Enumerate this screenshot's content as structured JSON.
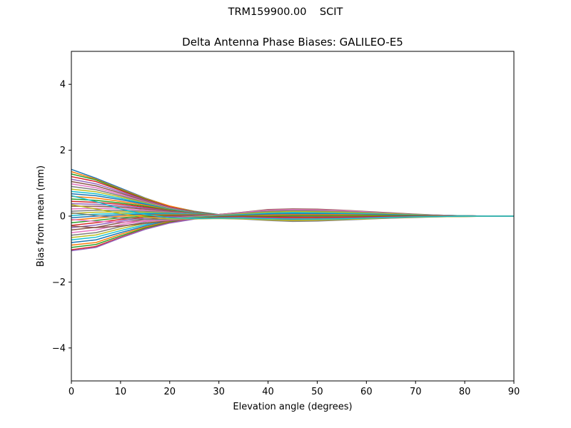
{
  "figure": {
    "suptitle": "TRM159900.00    SCIT"
  },
  "chart_data": {
    "type": "line",
    "title": "Delta Antenna Phase Biases: GALILEO-E5",
    "xlabel": "Elevation angle (degrees)",
    "ylabel": "Bias from mean (mm)",
    "xlim": [
      0,
      90
    ],
    "ylim": [
      -5,
      5
    ],
    "xticks": [
      0,
      10,
      20,
      30,
      40,
      50,
      60,
      70,
      80,
      90
    ],
    "yticks": [
      -4,
      -2,
      0,
      2,
      4
    ],
    "ytick_labels": [
      "−4",
      "−2",
      "0",
      "2",
      "4"
    ],
    "grid": false,
    "legend": "none",
    "x": [
      0,
      5,
      10,
      15,
      20,
      25,
      30,
      35,
      40,
      45,
      50,
      55,
      60,
      65,
      70,
      75,
      80,
      85,
      90
    ],
    "palette": [
      "#1f77b4",
      "#ff7f0e",
      "#2ca02c",
      "#d62728",
      "#9467bd",
      "#8c564b",
      "#e377c2",
      "#7f7f7f",
      "#bcbd22",
      "#17becf"
    ],
    "series": [
      {
        "values": [
          1.42,
          1.15,
          0.85,
          0.55,
          0.3,
          0.15,
          0.05,
          0.02,
          0.0,
          -0.02,
          -0.03,
          -0.03,
          -0.02,
          -0.01,
          -0.01,
          0.0,
          0.0,
          0.0,
          0.0
        ]
      },
      {
        "values": [
          1.35,
          1.12,
          0.82,
          0.54,
          0.31,
          0.14,
          0.04,
          0.01,
          -0.01,
          -0.03,
          -0.04,
          -0.03,
          -0.02,
          -0.02,
          -0.01,
          0.0,
          0.0,
          0.0,
          0.0
        ]
      },
      {
        "values": [
          1.28,
          1.1,
          0.8,
          0.52,
          0.28,
          0.13,
          0.04,
          0.01,
          -0.02,
          -0.04,
          -0.05,
          -0.04,
          -0.03,
          -0.02,
          -0.01,
          -0.01,
          0.0,
          0.0,
          0.0
        ]
      },
      {
        "values": [
          1.2,
          1.05,
          0.78,
          0.5,
          0.28,
          0.12,
          0.03,
          0.0,
          -0.03,
          -0.05,
          -0.06,
          -0.05,
          -0.04,
          -0.02,
          -0.01,
          -0.01,
          0.0,
          0.0,
          0.0
        ]
      },
      {
        "values": [
          1.12,
          0.98,
          0.74,
          0.48,
          0.26,
          0.12,
          0.03,
          0.01,
          -0.02,
          -0.04,
          -0.05,
          -0.05,
          -0.03,
          -0.02,
          -0.01,
          0.0,
          0.0,
          0.0,
          0.0
        ]
      },
      {
        "values": [
          1.05,
          0.92,
          0.7,
          0.46,
          0.25,
          0.11,
          0.03,
          0.0,
          -0.03,
          -0.05,
          -0.06,
          -0.05,
          -0.04,
          -0.02,
          -0.01,
          -0.01,
          0.0,
          0.0,
          0.0
        ]
      },
      {
        "values": [
          0.98,
          0.86,
          0.66,
          0.44,
          0.24,
          0.1,
          0.02,
          0.0,
          -0.03,
          -0.05,
          -0.06,
          -0.05,
          -0.04,
          -0.03,
          -0.01,
          -0.01,
          0.0,
          0.0,
          0.0
        ]
      },
      {
        "values": [
          0.9,
          0.8,
          0.62,
          0.42,
          0.23,
          0.1,
          0.02,
          0.0,
          -0.02,
          -0.04,
          -0.05,
          -0.05,
          -0.04,
          -0.02,
          -0.01,
          0.0,
          0.0,
          0.0,
          0.0
        ]
      },
      {
        "values": [
          0.82,
          0.74,
          0.58,
          0.4,
          0.22,
          0.09,
          0.02,
          0.0,
          -0.02,
          -0.04,
          -0.05,
          -0.04,
          -0.03,
          -0.02,
          -0.01,
          0.0,
          0.0,
          0.0,
          0.0
        ]
      },
      {
        "values": [
          0.75,
          0.68,
          0.54,
          0.38,
          0.21,
          0.09,
          0.02,
          0.0,
          -0.02,
          -0.03,
          -0.04,
          -0.04,
          -0.03,
          -0.02,
          -0.01,
          0.0,
          0.0,
          0.0,
          0.0
        ]
      },
      {
        "values": [
          0.68,
          0.62,
          0.5,
          0.36,
          0.2,
          0.08,
          0.02,
          0.01,
          -0.01,
          -0.03,
          -0.04,
          -0.03,
          -0.03,
          -0.02,
          -0.01,
          0.0,
          0.0,
          0.0,
          0.0
        ]
      },
      {
        "values": [
          0.6,
          0.55,
          0.45,
          0.33,
          0.19,
          0.08,
          0.02,
          0.01,
          -0.01,
          -0.02,
          -0.03,
          -0.03,
          -0.02,
          -0.01,
          -0.01,
          0.0,
          0.0,
          0.0,
          0.0
        ]
      },
      {
        "values": [
          0.52,
          0.48,
          0.4,
          0.3,
          0.18,
          0.08,
          0.02,
          0.01,
          0.0,
          -0.02,
          -0.03,
          -0.03,
          -0.02,
          -0.01,
          0.0,
          0.0,
          0.0,
          0.0,
          0.0
        ]
      },
      {
        "values": [
          0.45,
          0.42,
          0.36,
          0.27,
          0.16,
          0.07,
          0.02,
          0.01,
          0.0,
          -0.01,
          -0.02,
          -0.02,
          -0.02,
          -0.01,
          0.0,
          0.0,
          0.0,
          0.0,
          0.0
        ]
      },
      {
        "values": [
          0.38,
          0.36,
          0.31,
          0.24,
          0.15,
          0.07,
          0.02,
          0.01,
          0.01,
          0.0,
          -0.01,
          -0.02,
          -0.01,
          -0.01,
          0.0,
          0.0,
          0.0,
          0.0,
          0.0
        ]
      },
      {
        "values": [
          0.3,
          0.3,
          0.27,
          0.21,
          0.14,
          0.06,
          0.02,
          0.02,
          0.02,
          0.01,
          0.0,
          -0.01,
          -0.01,
          0.0,
          0.0,
          0.0,
          0.0,
          0.0,
          0.0
        ]
      },
      {
        "values": [
          0.22,
          0.24,
          0.22,
          0.18,
          0.12,
          0.06,
          0.02,
          0.03,
          0.03,
          0.02,
          0.01,
          0.0,
          0.0,
          0.0,
          0.0,
          0.0,
          0.0,
          0.0,
          0.0
        ]
      },
      {
        "values": [
          0.15,
          0.18,
          0.17,
          0.15,
          0.11,
          0.06,
          0.03,
          0.04,
          0.05,
          0.04,
          0.03,
          0.02,
          0.01,
          0.01,
          0.0,
          0.0,
          0.0,
          0.0,
          0.0
        ]
      },
      {
        "values": [
          0.08,
          0.12,
          0.13,
          0.12,
          0.09,
          0.06,
          0.04,
          0.05,
          0.07,
          0.07,
          0.06,
          0.04,
          0.03,
          0.02,
          0.01,
          0.01,
          0.0,
          0.0,
          0.0
        ]
      },
      {
        "values": [
          0.02,
          0.06,
          0.08,
          0.09,
          0.08,
          0.06,
          0.05,
          0.07,
          0.09,
          0.1,
          0.09,
          0.07,
          0.05,
          0.03,
          0.02,
          0.01,
          0.0,
          0.0,
          0.0
        ]
      },
      {
        "values": [
          -0.05,
          0.0,
          0.04,
          0.06,
          0.06,
          0.05,
          0.05,
          0.08,
          0.11,
          0.12,
          0.11,
          0.09,
          0.07,
          0.05,
          0.03,
          0.01,
          0.0,
          0.0,
          0.0
        ]
      },
      {
        "values": [
          -0.12,
          -0.06,
          0.0,
          0.03,
          0.04,
          0.04,
          0.05,
          0.09,
          0.13,
          0.14,
          0.13,
          0.11,
          0.08,
          0.06,
          0.03,
          0.02,
          0.01,
          0.0,
          0.0
        ]
      },
      {
        "values": [
          -0.2,
          -0.13,
          -0.05,
          0.0,
          0.02,
          0.03,
          0.05,
          0.1,
          0.15,
          0.16,
          0.15,
          0.13,
          0.1,
          0.07,
          0.04,
          0.02,
          0.01,
          0.0,
          0.0
        ]
      },
      {
        "values": [
          -0.28,
          -0.2,
          -0.1,
          -0.03,
          0.0,
          0.02,
          0.05,
          0.11,
          0.17,
          0.19,
          0.18,
          0.15,
          0.11,
          0.08,
          0.05,
          0.02,
          0.01,
          0.0,
          0.0
        ]
      },
      {
        "values": [
          -0.35,
          -0.27,
          -0.15,
          -0.06,
          -0.02,
          0.01,
          0.05,
          0.12,
          0.19,
          0.21,
          0.2,
          0.17,
          0.13,
          0.09,
          0.05,
          0.03,
          0.01,
          0.0,
          0.0
        ]
      },
      {
        "values": [
          -0.42,
          -0.34,
          -0.2,
          -0.1,
          -0.04,
          0.0,
          0.05,
          0.12,
          0.2,
          0.22,
          0.21,
          0.18,
          0.14,
          0.1,
          0.06,
          0.03,
          0.01,
          0.0,
          0.0
        ]
      },
      {
        "values": [
          -0.5,
          -0.42,
          -0.26,
          -0.14,
          -0.06,
          -0.01,
          0.04,
          0.11,
          0.18,
          0.2,
          0.19,
          0.17,
          0.13,
          0.09,
          0.05,
          0.03,
          0.01,
          0.0,
          0.0
        ]
      },
      {
        "values": [
          -0.58,
          -0.5,
          -0.32,
          -0.18,
          -0.08,
          -0.02,
          0.03,
          0.09,
          0.15,
          0.17,
          0.16,
          0.14,
          0.11,
          0.08,
          0.05,
          0.02,
          0.01,
          0.0,
          0.0
        ]
      },
      {
        "values": [
          -0.65,
          -0.57,
          -0.38,
          -0.22,
          -0.1,
          -0.03,
          0.02,
          0.07,
          0.12,
          0.14,
          0.13,
          0.12,
          0.09,
          0.07,
          0.04,
          0.02,
          0.01,
          0.0,
          0.0
        ]
      },
      {
        "values": [
          -0.72,
          -0.64,
          -0.44,
          -0.26,
          -0.12,
          -0.04,
          0.01,
          0.05,
          0.09,
          0.11,
          0.1,
          0.09,
          0.07,
          0.05,
          0.03,
          0.02,
          0.01,
          0.0,
          0.0
        ]
      },
      {
        "values": [
          -0.8,
          -0.72,
          -0.5,
          -0.3,
          -0.14,
          -0.05,
          0.0,
          0.03,
          0.06,
          0.07,
          0.07,
          0.06,
          0.05,
          0.04,
          0.02,
          0.01,
          0.0,
          0.0,
          0.0
        ]
      },
      {
        "values": [
          -0.88,
          -0.8,
          -0.55,
          -0.33,
          -0.16,
          -0.06,
          -0.01,
          0.01,
          0.03,
          0.04,
          0.04,
          0.04,
          0.03,
          0.02,
          0.01,
          0.01,
          0.0,
          0.0,
          0.0
        ]
      },
      {
        "values": [
          -0.95,
          -0.86,
          -0.6,
          -0.36,
          -0.18,
          -0.07,
          -0.02,
          0.0,
          0.0,
          0.01,
          0.01,
          0.01,
          0.01,
          0.01,
          0.01,
          0.0,
          0.0,
          0.0,
          0.0
        ]
      },
      {
        "values": [
          -1.02,
          -0.92,
          -0.64,
          -0.39,
          -0.2,
          -0.08,
          -0.03,
          -0.02,
          -0.03,
          -0.04,
          -0.04,
          -0.03,
          -0.02,
          -0.01,
          0.0,
          0.0,
          0.0,
          0.0,
          0.0
        ]
      },
      {
        "values": [
          -1.05,
          -0.95,
          -0.66,
          -0.4,
          -0.21,
          -0.09,
          -0.04,
          -0.04,
          -0.06,
          -0.08,
          -0.08,
          -0.07,
          -0.05,
          -0.03,
          -0.02,
          -0.01,
          0.0,
          0.0,
          0.0
        ]
      },
      {
        "values": [
          -0.3,
          -0.35,
          -0.3,
          -0.22,
          -0.14,
          -0.08,
          -0.05,
          -0.06,
          -0.09,
          -0.11,
          -0.11,
          -0.09,
          -0.07,
          -0.05,
          -0.03,
          -0.01,
          0.0,
          0.0,
          0.0
        ]
      },
      {
        "values": [
          -0.1,
          -0.16,
          -0.18,
          -0.16,
          -0.12,
          -0.08,
          -0.06,
          -0.08,
          -0.12,
          -0.14,
          -0.13,
          -0.11,
          -0.08,
          -0.06,
          -0.03,
          -0.02,
          -0.01,
          0.0,
          0.0
        ]
      },
      {
        "values": [
          0.1,
          0.02,
          -0.06,
          -0.1,
          -0.1,
          -0.08,
          -0.07,
          -0.09,
          -0.13,
          -0.16,
          -0.15,
          -0.12,
          -0.09,
          -0.06,
          -0.04,
          -0.02,
          -0.01,
          0.0,
          0.0
        ]
      },
      {
        "values": [
          0.35,
          0.22,
          0.08,
          -0.03,
          -0.08,
          -0.08,
          -0.07,
          -0.08,
          -0.11,
          -0.13,
          -0.12,
          -0.1,
          -0.08,
          -0.05,
          -0.03,
          -0.02,
          -0.01,
          0.0,
          0.0
        ]
      },
      {
        "values": [
          0.62,
          0.44,
          0.22,
          0.05,
          -0.05,
          -0.07,
          -0.06,
          -0.06,
          -0.08,
          -0.09,
          -0.09,
          -0.08,
          -0.06,
          -0.04,
          -0.02,
          -0.01,
          0.0,
          0.0,
          0.0
        ]
      }
    ]
  }
}
